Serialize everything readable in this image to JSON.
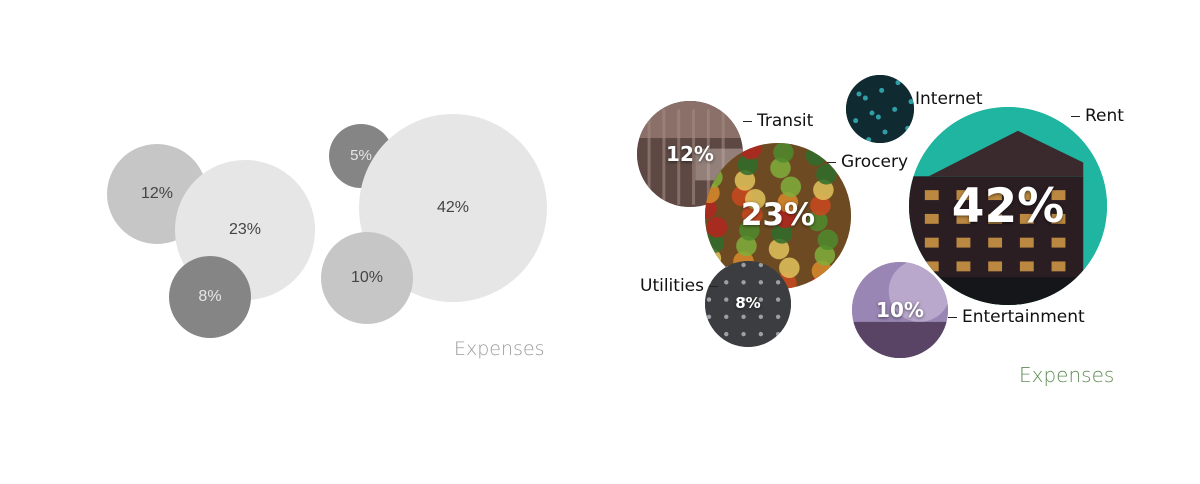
{
  "colors": {
    "plain_big": "#e6e6e6",
    "plain_mid": "#c6c6c6",
    "plain_small": "#858585",
    "plain_caption": "#9a9a9a",
    "styled_caption": "#5e8c55",
    "transit": "#6b5450",
    "grocery": "#7f5a2e",
    "utilities": "#4a4a4a",
    "internet": "#163a40",
    "rent": "#1fb5a0",
    "entertainment": "#a08ab8"
  },
  "chart_data": [
    {
      "type": "bubble",
      "style": "plain",
      "caption": "Expenses",
      "series": [
        {
          "value": 12,
          "label": "12%"
        },
        {
          "value": 23,
          "label": "23%"
        },
        {
          "value": 8,
          "label": "8%"
        },
        {
          "value": 5,
          "label": "5%"
        },
        {
          "value": 42,
          "label": "42%"
        },
        {
          "value": 10,
          "label": "10%"
        }
      ]
    },
    {
      "type": "bubble",
      "style": "image-filled",
      "caption": "Expenses",
      "series": [
        {
          "category": "Transit",
          "value": 12,
          "label": "12%",
          "fill": "transit-photo"
        },
        {
          "category": "Grocery",
          "value": 23,
          "label": "23%",
          "fill": "grocery-photo"
        },
        {
          "category": "Utilities",
          "value": 8,
          "label": "8%",
          "fill": "utilities-photo"
        },
        {
          "category": "Internet",
          "value": 5,
          "label": "",
          "fill": "internet-photo"
        },
        {
          "category": "Rent",
          "value": 42,
          "label": "42%",
          "fill": "rent-photo"
        },
        {
          "category": "Entertainment",
          "value": 10,
          "label": "10%",
          "fill": "entertainment-photo"
        }
      ]
    }
  ]
}
